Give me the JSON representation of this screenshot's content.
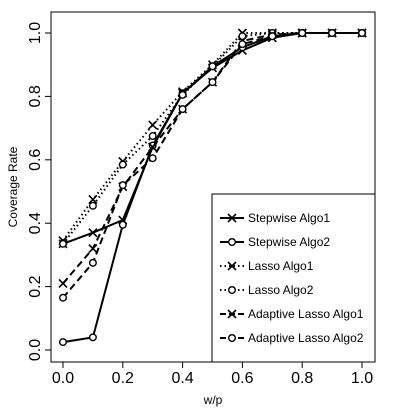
{
  "chart_data": {
    "type": "line",
    "xlabel": "w/p",
    "ylabel": "Coverage Rate",
    "xlim": [
      0.0,
      1.0
    ],
    "ylim": [
      0.0,
      1.0
    ],
    "x_ticks": [
      "0.0",
      "0.2",
      "0.4",
      "0.6",
      "0.8",
      "1.0"
    ],
    "y_ticks": [
      "0.0",
      "0.2",
      "0.4",
      "0.6",
      "0.8",
      "1.0"
    ],
    "grid": false,
    "legend_position": "bottom-right",
    "x": [
      0.0,
      0.1,
      0.2,
      0.3,
      0.4,
      0.5,
      0.6,
      0.7,
      0.8,
      0.9,
      1.0
    ],
    "series": [
      {
        "name": "Stepwise Algo1",
        "line": "solid",
        "marker": "cross",
        "values": [
          0.335,
          0.37,
          0.41,
          0.64,
          0.81,
          0.89,
          0.945,
          0.985,
          1.0,
          1.0,
          1.0
        ]
      },
      {
        "name": "Stepwise Algo2",
        "line": "solid",
        "marker": "circle",
        "values": [
          0.025,
          0.04,
          0.395,
          0.645,
          0.81,
          0.895,
          0.955,
          0.99,
          1.0,
          1.0,
          1.0
        ]
      },
      {
        "name": "Lasso Algo1",
        "line": "dotted",
        "marker": "cross",
        "values": [
          0.345,
          0.475,
          0.595,
          0.71,
          0.815,
          0.9,
          1.0,
          1.0,
          1.0,
          1.0,
          1.0
        ]
      },
      {
        "name": "Lasso Algo2",
        "line": "dotted",
        "marker": "circle",
        "values": [
          0.335,
          0.455,
          0.585,
          0.675,
          0.805,
          0.895,
          0.99,
          1.0,
          1.0,
          1.0,
          1.0
        ]
      },
      {
        "name": "Adaptive Lasso Algo1",
        "line": "dashed",
        "marker": "cross",
        "values": [
          0.21,
          0.32,
          0.515,
          0.64,
          0.76,
          0.845,
          0.975,
          0.995,
          1.0,
          1.0,
          1.0
        ]
      },
      {
        "name": "Adaptive Lasso Algo2",
        "line": "dashed",
        "marker": "circle",
        "values": [
          0.165,
          0.275,
          0.52,
          0.605,
          0.76,
          0.845,
          0.965,
          0.99,
          1.0,
          1.0,
          1.0
        ]
      }
    ]
  }
}
